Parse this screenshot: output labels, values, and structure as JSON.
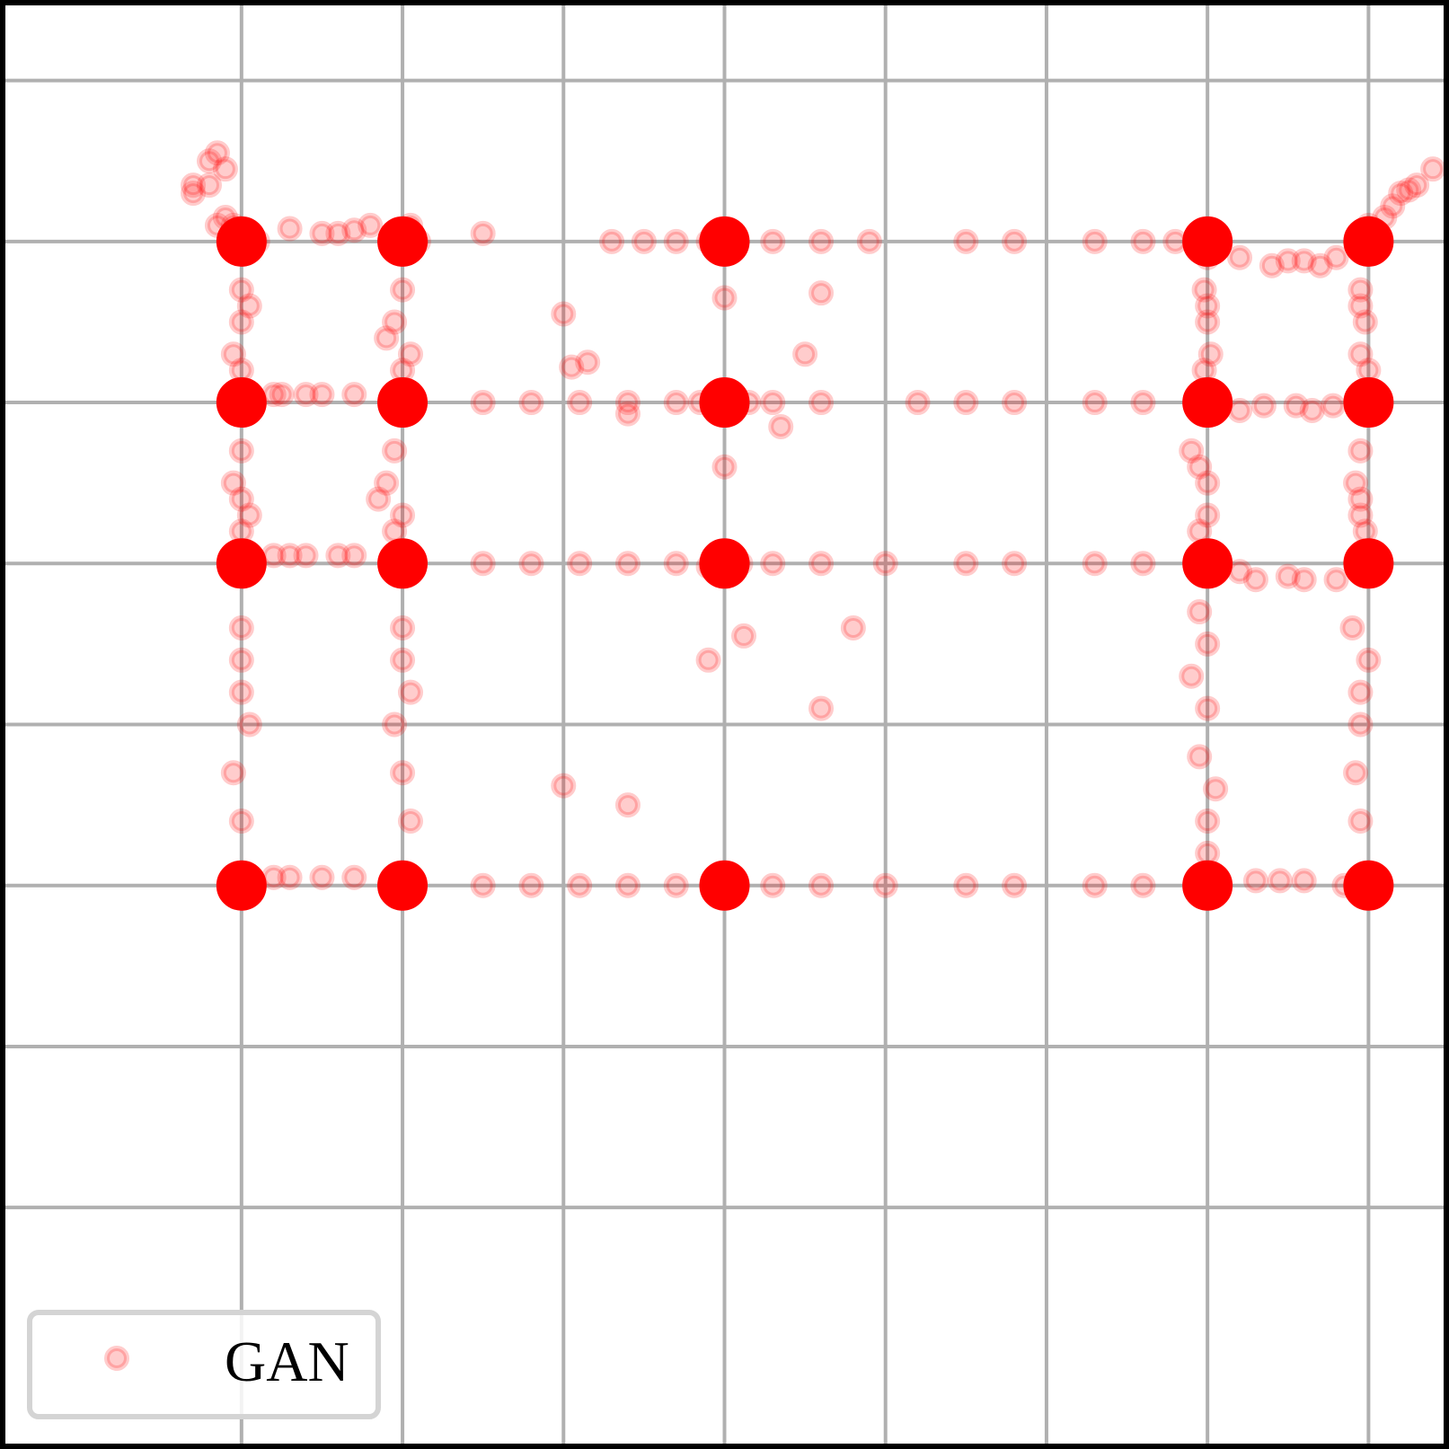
{
  "chart_data": {
    "type": "scatter",
    "title": "",
    "xlabel": "",
    "ylabel": "",
    "xlim": [
      -4.5,
      4.5
    ],
    "ylim": [
      -4.5,
      4.5
    ],
    "grid": true,
    "gridlines": [
      -3,
      -2,
      -1,
      0,
      1,
      2,
      3,
      4
    ],
    "tick_labels_visible": false,
    "legend_position": "bottom-left",
    "series": [
      {
        "name": "GAN",
        "color": "#ff0000",
        "marker": "hollow-circle",
        "alpha": 0.2,
        "clusters": [
          [
            -3,
            3
          ],
          [
            -2,
            3
          ],
          [
            0,
            3
          ],
          [
            3,
            3
          ],
          [
            4,
            3
          ],
          [
            -3,
            2
          ],
          [
            -2,
            2
          ],
          [
            0,
            2
          ],
          [
            3,
            2
          ],
          [
            4,
            2
          ],
          [
            -3,
            1
          ],
          [
            -2,
            1
          ],
          [
            0,
            1
          ],
          [
            3,
            1
          ],
          [
            4,
            1
          ],
          [
            -3,
            -1
          ],
          [
            -2,
            -1
          ],
          [
            0,
            -1
          ],
          [
            3,
            -1
          ],
          [
            4,
            -1
          ]
        ],
        "values": [
          [
            -3.05,
            3.1
          ],
          [
            -2.95,
            3.05
          ],
          [
            -3.1,
            3.15
          ],
          [
            -2.9,
            3.0
          ],
          [
            -3.0,
            2.95
          ],
          [
            -3.15,
            3.1
          ],
          [
            -2.0,
            3.05
          ],
          [
            -1.95,
            3.1
          ],
          [
            -2.05,
            3.0
          ],
          [
            -1.9,
            3.0
          ],
          [
            -0.1,
            3.0
          ],
          [
            0.05,
            3.0
          ],
          [
            0.05,
            2.95
          ],
          [
            -0.05,
            3.05
          ],
          [
            3.0,
            3.02
          ],
          [
            2.95,
            3.0
          ],
          [
            3.05,
            2.95
          ],
          [
            3.0,
            2.9
          ],
          [
            3.95,
            3.0
          ],
          [
            4.05,
            3.05
          ],
          [
            4.0,
            3.1
          ],
          [
            4.1,
            3.15
          ],
          [
            3.98,
            2.95
          ],
          [
            -3.0,
            2.02
          ],
          [
            -3.05,
            1.95
          ],
          [
            -2.95,
            2.05
          ],
          [
            -2.0,
            2.0
          ],
          [
            -1.95,
            1.95
          ],
          [
            -2.05,
            2.05
          ],
          [
            0.0,
            2.0
          ],
          [
            -0.15,
            2.0
          ],
          [
            0.15,
            2.0
          ],
          [
            3.0,
            1.98
          ],
          [
            3.05,
            1.95
          ],
          [
            2.95,
            2.0
          ],
          [
            3.95,
            2.0
          ],
          [
            4.0,
            1.98
          ],
          [
            4.02,
            2.02
          ],
          [
            -3.0,
            1.0
          ],
          [
            -2.98,
            0.98
          ],
          [
            -3.05,
            1.02
          ],
          [
            -2.0,
            1.0
          ],
          [
            -1.95,
            0.98
          ],
          [
            -2.02,
            1.02
          ],
          [
            0.0,
            1.0
          ],
          [
            -0.1,
            0.98
          ],
          [
            0.1,
            1.0
          ],
          [
            3.0,
            0.98
          ],
          [
            3.02,
            0.95
          ],
          [
            2.98,
            1.0
          ],
          [
            4.0,
            1.0
          ],
          [
            3.98,
            0.98
          ],
          [
            4.02,
            1.02
          ],
          [
            -3.05,
            -1.0
          ],
          [
            -3.0,
            -0.98
          ],
          [
            -2.95,
            -1.05
          ],
          [
            -2.0,
            -1.0
          ],
          [
            -1.95,
            -1.02
          ],
          [
            -2.05,
            -0.98
          ],
          [
            0.0,
            -1.0
          ],
          [
            -0.05,
            -1.02
          ],
          [
            0.05,
            -0.98
          ],
          [
            3.0,
            -1.0
          ],
          [
            2.98,
            -0.95
          ],
          [
            3.05,
            -1.05
          ],
          [
            4.0,
            -1.02
          ],
          [
            3.98,
            -0.98
          ],
          [
            4.02,
            -1.05
          ],
          [
            -3.3,
            3.3
          ],
          [
            -3.2,
            3.5
          ],
          [
            -3.1,
            3.45
          ],
          [
            -3.3,
            3.35
          ],
          [
            -3.15,
            3.55
          ],
          [
            -3.2,
            3.35
          ],
          [
            -2.5,
            3.05
          ],
          [
            -2.4,
            3.05
          ],
          [
            -2.3,
            3.07
          ],
          [
            -2.2,
            3.1
          ],
          [
            -2.7,
            3.08
          ],
          [
            4.3,
            3.35
          ],
          [
            4.2,
            3.3
          ],
          [
            4.25,
            3.32
          ],
          [
            4.15,
            3.22
          ],
          [
            4.4,
            3.45
          ],
          [
            3.2,
            2.9
          ],
          [
            3.4,
            2.85
          ],
          [
            3.6,
            2.88
          ],
          [
            3.7,
            2.85
          ],
          [
            3.5,
            2.88
          ],
          [
            3.8,
            2.9
          ],
          [
            -2.8,
            2.05
          ],
          [
            -2.5,
            2.05
          ],
          [
            -2.3,
            2.05
          ],
          [
            -2.6,
            2.05
          ],
          [
            -2.75,
            2.05
          ],
          [
            3.35,
            1.98
          ],
          [
            3.55,
            1.98
          ],
          [
            3.65,
            1.95
          ],
          [
            3.78,
            1.98
          ],
          [
            3.2,
            1.95
          ],
          [
            -2.8,
            1.05
          ],
          [
            -2.6,
            1.05
          ],
          [
            -2.3,
            1.05
          ],
          [
            -2.4,
            1.05
          ],
          [
            -2.7,
            1.05
          ],
          [
            3.2,
            0.95
          ],
          [
            3.3,
            0.9
          ],
          [
            3.5,
            0.92
          ],
          [
            3.6,
            0.9
          ],
          [
            3.8,
            0.9
          ],
          [
            -2.7,
            -0.95
          ],
          [
            -2.5,
            -0.95
          ],
          [
            -2.3,
            -0.95
          ],
          [
            -2.8,
            -0.95
          ],
          [
            3.3,
            -0.97
          ],
          [
            3.45,
            -0.97
          ],
          [
            3.6,
            -0.97
          ],
          [
            3.85,
            -1.0
          ],
          [
            -3.0,
            2.7
          ],
          [
            -3.0,
            2.5
          ],
          [
            -3.05,
            2.3
          ],
          [
            -2.95,
            2.6
          ],
          [
            -3.0,
            2.2
          ],
          [
            -3.0,
            1.7
          ],
          [
            -3.05,
            1.5
          ],
          [
            -2.95,
            1.3
          ],
          [
            -3.0,
            1.4
          ],
          [
            -3.0,
            1.2
          ],
          [
            -3.0,
            0.6
          ],
          [
            -3.0,
            0.2
          ],
          [
            -3.05,
            -0.3
          ],
          [
            -2.95,
            0.0
          ],
          [
            -3.0,
            -0.6
          ],
          [
            -3.0,
            0.4
          ],
          [
            -2.0,
            2.7
          ],
          [
            -2.05,
            2.5
          ],
          [
            -1.95,
            2.3
          ],
          [
            -2.1,
            2.4
          ],
          [
            -2.0,
            2.2
          ],
          [
            -2.05,
            1.7
          ],
          [
            -2.1,
            1.5
          ],
          [
            -2.0,
            1.3
          ],
          [
            -2.15,
            1.4
          ],
          [
            -2.05,
            1.2
          ],
          [
            -2.0,
            0.6
          ],
          [
            -1.95,
            0.2
          ],
          [
            -2.0,
            -0.3
          ],
          [
            -2.05,
            0.0
          ],
          [
            -1.95,
            -0.6
          ],
          [
            -2.0,
            0.4
          ],
          [
            2.98,
            2.7
          ],
          [
            3.0,
            2.5
          ],
          [
            3.02,
            2.3
          ],
          [
            3.0,
            2.6
          ],
          [
            2.98,
            2.2
          ],
          [
            2.9,
            1.7
          ],
          [
            2.95,
            1.6
          ],
          [
            3.0,
            1.5
          ],
          [
            3.0,
            1.3
          ],
          [
            2.95,
            1.2
          ],
          [
            2.95,
            0.7
          ],
          [
            3.0,
            0.5
          ],
          [
            2.9,
            0.3
          ],
          [
            3.0,
            0.1
          ],
          [
            2.95,
            -0.2
          ],
          [
            3.05,
            -0.4
          ],
          [
            3.0,
            -0.6
          ],
          [
            3.0,
            -0.8
          ],
          [
            3.95,
            2.7
          ],
          [
            3.98,
            2.5
          ],
          [
            3.95,
            2.3
          ],
          [
            3.95,
            2.6
          ],
          [
            4.0,
            2.2
          ],
          [
            3.95,
            1.7
          ],
          [
            3.92,
            1.5
          ],
          [
            3.95,
            1.3
          ],
          [
            3.95,
            1.4
          ],
          [
            3.98,
            1.2
          ],
          [
            3.9,
            0.6
          ],
          [
            3.95,
            0.2
          ],
          [
            3.92,
            -0.3
          ],
          [
            3.95,
            0.0
          ],
          [
            3.95,
            -0.6
          ],
          [
            4.0,
            0.4
          ],
          [
            -1.5,
            3.05
          ],
          [
            -0.7,
            3.0
          ],
          [
            -0.5,
            3.0
          ],
          [
            -0.3,
            3.0
          ],
          [
            0.3,
            3.0
          ],
          [
            0.6,
            3.0
          ],
          [
            0.9,
            3.0
          ],
          [
            1.5,
            3.0
          ],
          [
            1.8,
            3.0
          ],
          [
            2.3,
            3.0
          ],
          [
            2.6,
            3.0
          ],
          [
            2.8,
            3.0
          ],
          [
            -1.5,
            2.0
          ],
          [
            -1.2,
            2.0
          ],
          [
            -0.9,
            2.0
          ],
          [
            -0.6,
            2.0
          ],
          [
            -0.3,
            2.0
          ],
          [
            0.3,
            2.0
          ],
          [
            0.6,
            2.0
          ],
          [
            1.2,
            2.0
          ],
          [
            1.5,
            2.0
          ],
          [
            1.8,
            2.0
          ],
          [
            2.3,
            2.0
          ],
          [
            2.6,
            2.0
          ],
          [
            -1.5,
            1.0
          ],
          [
            -1.2,
            1.0
          ],
          [
            -0.9,
            1.0
          ],
          [
            -0.6,
            1.0
          ],
          [
            -0.3,
            1.0
          ],
          [
            0.3,
            1.0
          ],
          [
            0.6,
            1.0
          ],
          [
            1.0,
            1.0
          ],
          [
            1.5,
            1.0
          ],
          [
            1.8,
            1.0
          ],
          [
            2.3,
            1.0
          ],
          [
            2.6,
            1.0
          ],
          [
            -1.5,
            -1.0
          ],
          [
            -1.2,
            -1.0
          ],
          [
            -0.9,
            -1.0
          ],
          [
            -0.6,
            -1.0
          ],
          [
            -0.3,
            -1.0
          ],
          [
            0.3,
            -1.0
          ],
          [
            0.6,
            -1.0
          ],
          [
            1.0,
            -1.0
          ],
          [
            1.5,
            -1.0
          ],
          [
            1.8,
            -1.0
          ],
          [
            2.3,
            -1.0
          ],
          [
            2.6,
            -1.0
          ],
          [
            -1.0,
            2.55
          ],
          [
            -0.85,
            2.25
          ],
          [
            0.0,
            2.65
          ],
          [
            0.6,
            2.68
          ],
          [
            0.5,
            2.3
          ],
          [
            -0.95,
            2.22
          ],
          [
            0.0,
            1.6
          ],
          [
            0.35,
            1.85
          ],
          [
            -0.6,
            1.93
          ],
          [
            0.12,
            0.55
          ],
          [
            0.6,
            0.1
          ],
          [
            -0.1,
            0.4
          ],
          [
            0.8,
            0.6
          ],
          [
            -0.6,
            -0.5
          ],
          [
            -1.0,
            -0.38
          ]
        ]
      }
    ]
  }
}
